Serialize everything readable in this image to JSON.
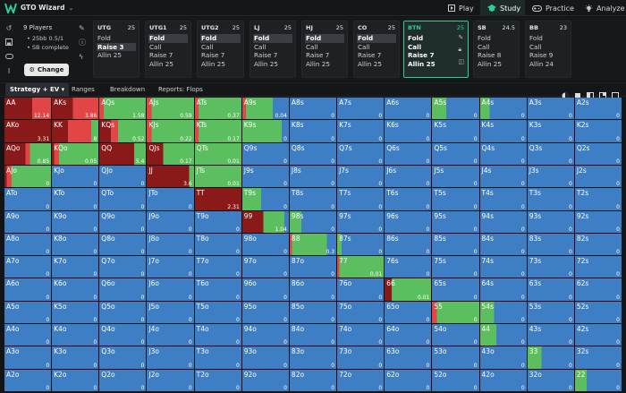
{
  "app": {
    "title": "GTO Wizard",
    "nav": [
      {
        "label": "Play",
        "icon": "play-icon"
      },
      {
        "label": "Study",
        "icon": "graduation-cap-icon"
      },
      {
        "label": "Practice",
        "icon": "gamepad-icon"
      },
      {
        "label": "Analyze",
        "icon": "bulb-icon"
      }
    ]
  },
  "header": {
    "players": "9 Players",
    "info_lines": [
      "25bb 0.5/1",
      "SB complete"
    ],
    "change_label": "Change"
  },
  "positions": [
    {
      "name": "UTG",
      "stack": "25",
      "actions": [
        "Fold",
        "Raise 3",
        "Allin 25"
      ],
      "selected": 1
    },
    {
      "name": "UTG1",
      "stack": "25",
      "actions": [
        "Fold",
        "Call",
        "Raise 7",
        "Allin 25"
      ],
      "selected": 0
    },
    {
      "name": "UTG2",
      "stack": "25",
      "actions": [
        "Fold",
        "Call",
        "Raise 7",
        "Allin 25"
      ],
      "selected": 0
    },
    {
      "name": "LJ",
      "stack": "25",
      "actions": [
        "Fold",
        "Call",
        "Raise 7",
        "Allin 25"
      ],
      "selected": 0
    },
    {
      "name": "HJ",
      "stack": "25",
      "actions": [
        "Fold",
        "Call",
        "Raise 7",
        "Allin 25"
      ],
      "selected": 0
    },
    {
      "name": "CO",
      "stack": "25",
      "actions": [
        "Fold",
        "Call",
        "Raise 7",
        "Allin 25"
      ],
      "selected": 0
    },
    {
      "name": "BTN",
      "stack": "25",
      "actions": [
        "Fold",
        "Call",
        "Raise 7",
        "Allin 25"
      ],
      "selected": -1,
      "active": true
    },
    {
      "name": "SB",
      "stack": "24.5",
      "actions": [
        "Fold",
        "Call",
        "Raise 8",
        "Allin 25"
      ],
      "selected": -1
    },
    {
      "name": "BB",
      "stack": "23",
      "actions": [
        "Fold",
        "Call",
        "Raise 9",
        "Allin 24"
      ],
      "selected": -1
    }
  ],
  "tabs": [
    "Strategy + EV",
    "Ranges",
    "Breakdown",
    "Reports: Flops"
  ],
  "colors": {
    "fold": "#3d7ec4",
    "call": "#5cbf5f",
    "raise": "#e24545",
    "allin": "#8a1a1a"
  },
  "grid": [
    [
      [
        "AA",
        "12.14",
        "r-a60-r40"
      ],
      [
        "AKs",
        "3.86",
        "r-a45-r55"
      ],
      [
        "AQs",
        "1.58",
        "r-r10-c90"
      ],
      [
        "AJs",
        "0.59",
        "r-r10-c90"
      ],
      [
        "ATs",
        "0.37",
        "r-r8-c92"
      ],
      [
        "A9s",
        "0.04",
        "r-r8-c57-f35"
      ],
      [
        "A8s",
        "0",
        "f"
      ],
      [
        "A7s",
        "0",
        "f"
      ],
      [
        "A6s",
        "0",
        "f"
      ],
      [
        "A5s",
        "0",
        "c30-f70"
      ],
      [
        "A4s",
        "0",
        "c20-f80"
      ],
      [
        "A3s",
        "0",
        "f"
      ],
      [
        "A2s",
        "0",
        "f"
      ]
    ],
    [
      [
        "AKo",
        "3.31",
        "r-a100"
      ],
      [
        "KK",
        "8",
        "r-a35-r50-c15"
      ],
      [
        "KQs",
        "0.52",
        "r-a25-r15-c60"
      ],
      [
        "KJs",
        "0.22",
        "r-r10-c90"
      ],
      [
        "KTs",
        "0.17",
        "r-r8-c92"
      ],
      [
        "K9s",
        "0",
        "c85-f15"
      ],
      [
        "K8s",
        "0",
        "f"
      ],
      [
        "K7s",
        "0",
        "f"
      ],
      [
        "K6s",
        "0",
        "f"
      ],
      [
        "K5s",
        "0",
        "f"
      ],
      [
        "K4s",
        "0",
        "f"
      ],
      [
        "K3s",
        "0",
        "f"
      ],
      [
        "K2s",
        "0",
        "f"
      ]
    ],
    [
      [
        "AQo",
        "0.85",
        "r-a45-r10-c45"
      ],
      [
        "KQo",
        "0.05",
        "r-a5-r10-c85"
      ],
      [
        "QQ",
        "5.4",
        "r-a75-c25"
      ],
      [
        "QJs",
        "0.17",
        "r-a35-c65"
      ],
      [
        "QTs",
        "0.01",
        "c100"
      ],
      [
        "Q9s",
        "0",
        "f"
      ],
      [
        "Q8s",
        "0",
        "f"
      ],
      [
        "Q7s",
        "0",
        "f"
      ],
      [
        "Q6s",
        "0",
        "f"
      ],
      [
        "Q5s",
        "0",
        "f"
      ],
      [
        "Q4s",
        "0",
        "f"
      ],
      [
        "Q3s",
        "0",
        "f"
      ],
      [
        "Q2s",
        "0",
        "f"
      ]
    ],
    [
      [
        "AJo",
        "0",
        "r-a5-r10-c85"
      ],
      [
        "KJo",
        "0",
        "f"
      ],
      [
        "QJo",
        "0",
        "f"
      ],
      [
        "JJ",
        "3.6",
        "r-a90-c10"
      ],
      [
        "JTs",
        "0.01",
        "c100"
      ],
      [
        "J9s",
        "0",
        "f"
      ],
      [
        "J8s",
        "0",
        "f"
      ],
      [
        "J7s",
        "0",
        "f"
      ],
      [
        "J6s",
        "0",
        "f"
      ],
      [
        "J5s",
        "0",
        "f"
      ],
      [
        "J4s",
        "0",
        "f"
      ],
      [
        "J3s",
        "0",
        "f"
      ],
      [
        "J2s",
        "0",
        "f"
      ]
    ],
    [
      [
        "ATo",
        "0",
        "f"
      ],
      [
        "KTo",
        "0",
        "f"
      ],
      [
        "QTo",
        "0",
        "f"
      ],
      [
        "JTo",
        "0",
        "f"
      ],
      [
        "TT",
        "2.31",
        "r-a100"
      ],
      [
        "T9s",
        "0",
        "c40-f60"
      ],
      [
        "T8s",
        "0",
        "f"
      ],
      [
        "T7s",
        "0",
        "f"
      ],
      [
        "T6s",
        "0",
        "f"
      ],
      [
        "T5s",
        "0",
        "f"
      ],
      [
        "T4s",
        "0",
        "f"
      ],
      [
        "T3s",
        "0",
        "f"
      ],
      [
        "T2s",
        "0",
        "f"
      ]
    ],
    [
      [
        "A9o",
        "0",
        "f"
      ],
      [
        "K9o",
        "0",
        "f"
      ],
      [
        "Q9o",
        "0",
        "f"
      ],
      [
        "J9o",
        "0",
        "f"
      ],
      [
        "T9o",
        "0",
        "f"
      ],
      [
        "99",
        "1.04",
        "r-a45-c45-f10"
      ],
      [
        "98s",
        "0",
        "c25-f75"
      ],
      [
        "97s",
        "0",
        "f"
      ],
      [
        "96s",
        "0",
        "f"
      ],
      [
        "95s",
        "0",
        "f"
      ],
      [
        "94s",
        "0",
        "f"
      ],
      [
        "93s",
        "0",
        "f"
      ],
      [
        "92s",
        "0",
        "f"
      ]
    ],
    [
      [
        "A8o",
        "0",
        "f"
      ],
      [
        "K8o",
        "0",
        "f"
      ],
      [
        "Q8o",
        "0",
        "f"
      ],
      [
        "J8o",
        "0",
        "f"
      ],
      [
        "T8o",
        "0",
        "f"
      ],
      [
        "98o",
        "0",
        "f"
      ],
      [
        "88",
        "0.3",
        "r-r5-c75-f20"
      ],
      [
        "87s",
        "0",
        "c10-f90"
      ],
      [
        "86s",
        "0",
        "f"
      ],
      [
        "85s",
        "0",
        "f"
      ],
      [
        "84s",
        "0",
        "f"
      ],
      [
        "83s",
        "0",
        "f"
      ],
      [
        "82s",
        "0",
        "f"
      ]
    ],
    [
      [
        "A7o",
        "0",
        "f"
      ],
      [
        "K7o",
        "0",
        "f"
      ],
      [
        "Q7o",
        "0",
        "f"
      ],
      [
        "J7o",
        "0",
        "f"
      ],
      [
        "T7o",
        "0",
        "f"
      ],
      [
        "97o",
        "0",
        "f"
      ],
      [
        "87o",
        "0",
        "f"
      ],
      [
        "77",
        "0.01",
        "r-r5-c95"
      ],
      [
        "76s",
        "0",
        "f"
      ],
      [
        "75s",
        "0",
        "f"
      ],
      [
        "74s",
        "0",
        "f"
      ],
      [
        "73s",
        "0",
        "f"
      ],
      [
        "72s",
        "0",
        "f"
      ]
    ],
    [
      [
        "A6o",
        "0",
        "f"
      ],
      [
        "K6o",
        "0",
        "f"
      ],
      [
        "Q6o",
        "0",
        "f"
      ],
      [
        "J6o",
        "0",
        "f"
      ],
      [
        "T6o",
        "0",
        "f"
      ],
      [
        "96o",
        "0",
        "f"
      ],
      [
        "86o",
        "0",
        "f"
      ],
      [
        "76o",
        "0",
        "f"
      ],
      [
        "66",
        "0.01",
        "r-a15-c85"
      ],
      [
        "65s",
        "0",
        "f"
      ],
      [
        "64s",
        "0",
        "f"
      ],
      [
        "63s",
        "0",
        "f"
      ],
      [
        "62s",
        "0",
        "f"
      ]
    ],
    [
      [
        "A5o",
        "0",
        "f"
      ],
      [
        "K5o",
        "0",
        "f"
      ],
      [
        "Q5o",
        "0",
        "f"
      ],
      [
        "J5o",
        "0",
        "f"
      ],
      [
        "T5o",
        "0",
        "f"
      ],
      [
        "95o",
        "0",
        "f"
      ],
      [
        "85o",
        "0",
        "f"
      ],
      [
        "75o",
        "0",
        "f"
      ],
      [
        "65o",
        "0",
        "f"
      ],
      [
        "55",
        "0",
        "r-r10-c90"
      ],
      [
        "54s",
        "0",
        "c30-f70"
      ],
      [
        "53s",
        "0",
        "f"
      ],
      [
        "52s",
        "0",
        "f"
      ]
    ],
    [
      [
        "A4o",
        "0",
        "f"
      ],
      [
        "K4o",
        "0",
        "f"
      ],
      [
        "Q4o",
        "0",
        "f"
      ],
      [
        "J4o",
        "0",
        "f"
      ],
      [
        "T4o",
        "0",
        "f"
      ],
      [
        "94o",
        "0",
        "f"
      ],
      [
        "84o",
        "0",
        "f"
      ],
      [
        "74o",
        "0",
        "f"
      ],
      [
        "64o",
        "0",
        "f"
      ],
      [
        "54o",
        "0",
        "f"
      ],
      [
        "44",
        "0",
        "c35-f65"
      ],
      [
        "43s",
        "0",
        "f"
      ],
      [
        "42s",
        "0",
        "f"
      ]
    ],
    [
      [
        "A3o",
        "0",
        "f"
      ],
      [
        "K3o",
        "0",
        "f"
      ],
      [
        "Q3o",
        "0",
        "f"
      ],
      [
        "J3o",
        "0",
        "f"
      ],
      [
        "T3o",
        "0",
        "f"
      ],
      [
        "93o",
        "0",
        "f"
      ],
      [
        "83o",
        "0",
        "f"
      ],
      [
        "73o",
        "0",
        "f"
      ],
      [
        "63o",
        "0",
        "f"
      ],
      [
        "53o",
        "0",
        "f"
      ],
      [
        "43o",
        "0",
        "f"
      ],
      [
        "33",
        "0",
        "c30-f70"
      ],
      [
        "32s",
        "0",
        "f"
      ]
    ],
    [
      [
        "A2o",
        "0",
        "f"
      ],
      [
        "K2o",
        "0",
        "f"
      ],
      [
        "Q2o",
        "0",
        "f"
      ],
      [
        "J2o",
        "0",
        "f"
      ],
      [
        "T2o",
        "0",
        "f"
      ],
      [
        "92o",
        "0",
        "f"
      ],
      [
        "82o",
        "0",
        "f"
      ],
      [
        "72o",
        "0",
        "f"
      ],
      [
        "62o",
        "0",
        "f"
      ],
      [
        "52o",
        "0",
        "f"
      ],
      [
        "42o",
        "0",
        "f"
      ],
      [
        "32o",
        "0",
        "f"
      ],
      [
        "22",
        "0",
        "c25-f75"
      ]
    ]
  ]
}
